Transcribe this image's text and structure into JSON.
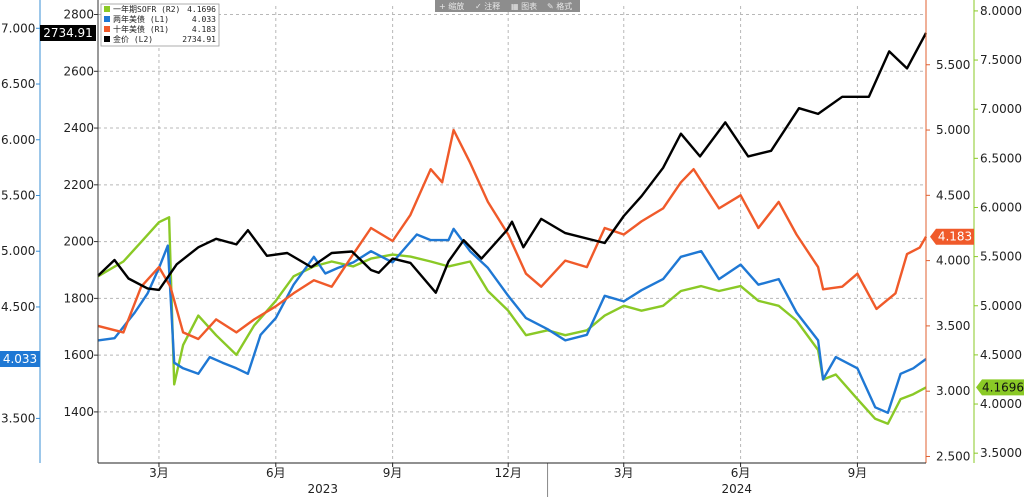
{
  "toolbar": {
    "buttons": [
      "+ 缩放",
      "✓ 注释",
      "▦ 图表",
      "✎ 格式"
    ]
  },
  "chart_data": {
    "type": "line",
    "axes": {
      "L1": {
        "min": 3.1,
        "max": 7.2,
        "ticks": [
          "3.500",
          "4.000",
          "4.500",
          "5.000",
          "5.500",
          "6.000",
          "6.500",
          "7.000"
        ],
        "tick_values": [
          3.5,
          4.0,
          4.5,
          5.0,
          5.5,
          6.0,
          6.5,
          7.0
        ],
        "color": "#3a8fd6"
      },
      "L2": {
        "min": 1220,
        "max": 2830,
        "ticks": [
          "1400",
          "1600",
          "1800",
          "2000",
          "2200",
          "2400",
          "2600",
          "2800"
        ],
        "tick_values": [
          1400,
          1600,
          1800,
          2000,
          2200,
          2400,
          2600,
          2800
        ],
        "color": "#333333"
      },
      "R1": {
        "min": 2.45,
        "max": 5.95,
        "ticks": [
          "2.500",
          "3.000",
          "3.500",
          "4.000",
          "4.500",
          "5.000",
          "5.500"
        ],
        "tick_values": [
          2.5,
          3.0,
          3.5,
          4.0,
          4.5,
          5.0,
          5.5
        ],
        "color": "#e06030"
      },
      "R2": {
        "min": 3.4,
        "max": 8.05,
        "ticks": [
          "3.5000",
          "4.0000",
          "4.5000",
          "5.0000",
          "5.5000",
          "6.0000",
          "6.5000",
          "7.0000",
          "7.5000",
          "8.0000"
        ],
        "tick_values": [
          3.5,
          4.0,
          4.5,
          5.0,
          5.5,
          6.0,
          6.5,
          7.0,
          7.5,
          8.0
        ],
        "color": "#8ac926"
      }
    },
    "x_range": [
      "2023-01-12",
      "2024-10-25"
    ],
    "x_ticks": [
      {
        "date": "2023-03-01",
        "label": "3月"
      },
      {
        "date": "2023-06-01",
        "label": "6月"
      },
      {
        "date": "2023-09-01",
        "label": "9月"
      },
      {
        "date": "2023-12-01",
        "label": "12月"
      },
      {
        "date": "2024-03-01",
        "label": "3月"
      },
      {
        "date": "2024-06-01",
        "label": "6月"
      },
      {
        "date": "2024-09-01",
        "label": "9月"
      }
    ],
    "years": [
      {
        "label": "2023",
        "start": "2023-01-12",
        "end": "2024-01-01"
      },
      {
        "label": "2024",
        "start": "2024-01-01",
        "end": "2024-10-25"
      }
    ],
    "legend": [
      {
        "name": "一年期SOFR (R2)",
        "value": "4.1696",
        "series": "sofr"
      },
      {
        "name": "两年美债 (L1)",
        "value": "4.033",
        "series": "ust2y"
      },
      {
        "name": "十年美债 (R1)",
        "value": "4.183",
        "series": "ust10y"
      },
      {
        "name": "金价 (L2)",
        "value": "2734.91",
        "series": "gold"
      }
    ],
    "series": [
      {
        "id": "sofr",
        "axis": "R2",
        "color": "#8ac926",
        "last_label": "4.1696",
        "label_side": "right",
        "points": [
          [
            "2023-01-12",
            5.3
          ],
          [
            "2023-02-01",
            5.45
          ],
          [
            "2023-02-15",
            5.65
          ],
          [
            "2023-03-01",
            5.85
          ],
          [
            "2023-03-09",
            5.9
          ],
          [
            "2023-03-13",
            4.2
          ],
          [
            "2023-03-20",
            4.6
          ],
          [
            "2023-04-01",
            4.9
          ],
          [
            "2023-04-15",
            4.7
          ],
          [
            "2023-05-01",
            4.5
          ],
          [
            "2023-05-15",
            4.8
          ],
          [
            "2023-06-01",
            5.05
          ],
          [
            "2023-06-15",
            5.3
          ],
          [
            "2023-07-01",
            5.4
          ],
          [
            "2023-07-15",
            5.45
          ],
          [
            "2023-08-01",
            5.4
          ],
          [
            "2023-08-15",
            5.48
          ],
          [
            "2023-09-01",
            5.52
          ],
          [
            "2023-09-15",
            5.5
          ],
          [
            "2023-10-01",
            5.45
          ],
          [
            "2023-10-15",
            5.4
          ],
          [
            "2023-11-01",
            5.45
          ],
          [
            "2023-11-15",
            5.15
          ],
          [
            "2023-12-01",
            4.95
          ],
          [
            "2023-12-15",
            4.7
          ],
          [
            "2024-01-01",
            4.75
          ],
          [
            "2024-01-15",
            4.7
          ],
          [
            "2024-02-01",
            4.75
          ],
          [
            "2024-02-15",
            4.9
          ],
          [
            "2024-03-01",
            5.0
          ],
          [
            "2024-03-15",
            4.95
          ],
          [
            "2024-04-01",
            5.0
          ],
          [
            "2024-04-15",
            5.15
          ],
          [
            "2024-05-01",
            5.2
          ],
          [
            "2024-05-15",
            5.15
          ],
          [
            "2024-06-01",
            5.2
          ],
          [
            "2024-06-15",
            5.05
          ],
          [
            "2024-07-01",
            5.0
          ],
          [
            "2024-07-15",
            4.85
          ],
          [
            "2024-08-01",
            4.55
          ],
          [
            "2024-08-05",
            4.25
          ],
          [
            "2024-08-15",
            4.3
          ],
          [
            "2024-09-01",
            4.05
          ],
          [
            "2024-09-15",
            3.85
          ],
          [
            "2024-09-25",
            3.8
          ],
          [
            "2024-10-05",
            4.05
          ],
          [
            "2024-10-15",
            4.1
          ],
          [
            "2024-10-25",
            4.1696
          ]
        ]
      },
      {
        "id": "ust2y",
        "axis": "L1",
        "color": "#1f78d4",
        "last_label": "4.033",
        "label_side": "left",
        "points": [
          [
            "2023-01-12",
            4.2
          ],
          [
            "2023-01-25",
            4.22
          ],
          [
            "2023-02-10",
            4.45
          ],
          [
            "2023-02-20",
            4.62
          ],
          [
            "2023-03-01",
            4.85
          ],
          [
            "2023-03-08",
            5.05
          ],
          [
            "2023-03-13",
            4.0
          ],
          [
            "2023-03-20",
            3.95
          ],
          [
            "2023-04-01",
            3.9
          ],
          [
            "2023-04-10",
            4.05
          ],
          [
            "2023-04-20",
            4.0
          ],
          [
            "2023-05-01",
            3.95
          ],
          [
            "2023-05-10",
            3.9
          ],
          [
            "2023-05-20",
            4.25
          ],
          [
            "2023-06-01",
            4.4
          ],
          [
            "2023-06-15",
            4.7
          ],
          [
            "2023-07-01",
            4.95
          ],
          [
            "2023-07-10",
            4.8
          ],
          [
            "2023-07-20",
            4.85
          ],
          [
            "2023-08-01",
            4.9
          ],
          [
            "2023-08-15",
            5.0
          ],
          [
            "2023-09-01",
            4.9
          ],
          [
            "2023-09-20",
            5.15
          ],
          [
            "2023-10-01",
            5.1
          ],
          [
            "2023-10-15",
            5.1
          ],
          [
            "2023-10-19",
            5.2
          ],
          [
            "2023-11-01",
            5.0
          ],
          [
            "2023-11-15",
            4.85
          ],
          [
            "2023-12-01",
            4.6
          ],
          [
            "2023-12-15",
            4.4
          ],
          [
            "2024-01-01",
            4.3
          ],
          [
            "2024-01-15",
            4.2
          ],
          [
            "2024-02-01",
            4.25
          ],
          [
            "2024-02-15",
            4.6
          ],
          [
            "2024-03-01",
            4.55
          ],
          [
            "2024-03-15",
            4.65
          ],
          [
            "2024-04-01",
            4.75
          ],
          [
            "2024-04-15",
            4.95
          ],
          [
            "2024-05-01",
            5.0
          ],
          [
            "2024-05-15",
            4.75
          ],
          [
            "2024-06-01",
            4.88
          ],
          [
            "2024-06-15",
            4.7
          ],
          [
            "2024-07-01",
            4.75
          ],
          [
            "2024-07-15",
            4.45
          ],
          [
            "2024-08-01",
            4.2
          ],
          [
            "2024-08-05",
            3.85
          ],
          [
            "2024-08-15",
            4.05
          ],
          [
            "2024-09-01",
            3.95
          ],
          [
            "2024-09-15",
            3.6
          ],
          [
            "2024-09-25",
            3.55
          ],
          [
            "2024-10-05",
            3.9
          ],
          [
            "2024-10-15",
            3.95
          ],
          [
            "2024-10-25",
            4.033
          ]
        ]
      },
      {
        "id": "ust10y",
        "axis": "R1",
        "color": "#f05a2a",
        "last_label": "4.183",
        "label_side": "right",
        "points": [
          [
            "2023-01-12",
            3.5
          ],
          [
            "2023-02-01",
            3.45
          ],
          [
            "2023-02-15",
            3.8
          ],
          [
            "2023-03-01",
            3.95
          ],
          [
            "2023-03-10",
            3.8
          ],
          [
            "2023-03-20",
            3.45
          ],
          [
            "2023-04-01",
            3.4
          ],
          [
            "2023-04-15",
            3.55
          ],
          [
            "2023-05-01",
            3.45
          ],
          [
            "2023-05-15",
            3.55
          ],
          [
            "2023-06-01",
            3.65
          ],
          [
            "2023-06-15",
            3.75
          ],
          [
            "2023-07-01",
            3.85
          ],
          [
            "2023-07-15",
            3.8
          ],
          [
            "2023-08-01",
            4.05
          ],
          [
            "2023-08-15",
            4.25
          ],
          [
            "2023-09-01",
            4.15
          ],
          [
            "2023-09-15",
            4.35
          ],
          [
            "2023-10-01",
            4.7
          ],
          [
            "2023-10-10",
            4.6
          ],
          [
            "2023-10-19",
            5.0
          ],
          [
            "2023-11-01",
            4.75
          ],
          [
            "2023-11-15",
            4.45
          ],
          [
            "2023-12-01",
            4.2
          ],
          [
            "2023-12-15",
            3.9
          ],
          [
            "2023-12-27",
            3.8
          ],
          [
            "2024-01-15",
            4.0
          ],
          [
            "2024-02-01",
            3.95
          ],
          [
            "2024-02-15",
            4.25
          ],
          [
            "2024-03-01",
            4.2
          ],
          [
            "2024-03-15",
            4.3
          ],
          [
            "2024-04-01",
            4.4
          ],
          [
            "2024-04-15",
            4.6
          ],
          [
            "2024-04-25",
            4.7
          ],
          [
            "2024-05-15",
            4.4
          ],
          [
            "2024-06-01",
            4.5
          ],
          [
            "2024-06-15",
            4.25
          ],
          [
            "2024-07-01",
            4.45
          ],
          [
            "2024-07-15",
            4.2
          ],
          [
            "2024-08-01",
            3.95
          ],
          [
            "2024-08-05",
            3.78
          ],
          [
            "2024-08-20",
            3.8
          ],
          [
            "2024-09-01",
            3.9
          ],
          [
            "2024-09-16",
            3.63
          ],
          [
            "2024-10-01",
            3.75
          ],
          [
            "2024-10-10",
            4.05
          ],
          [
            "2024-10-20",
            4.1
          ],
          [
            "2024-10-25",
            4.183
          ]
        ]
      },
      {
        "id": "gold",
        "axis": "L2",
        "color": "#000000",
        "last_label": "2734.91",
        "label_side": "left",
        "points": [
          [
            "2023-01-12",
            1880
          ],
          [
            "2023-01-25",
            1935
          ],
          [
            "2023-02-05",
            1870
          ],
          [
            "2023-02-20",
            1835
          ],
          [
            "2023-03-01",
            1830
          ],
          [
            "2023-03-15",
            1920
          ],
          [
            "2023-04-01",
            1980
          ],
          [
            "2023-04-15",
            2010
          ],
          [
            "2023-05-01",
            1990
          ],
          [
            "2023-05-10",
            2040
          ],
          [
            "2023-05-25",
            1950
          ],
          [
            "2023-06-10",
            1960
          ],
          [
            "2023-06-29",
            1910
          ],
          [
            "2023-07-15",
            1960
          ],
          [
            "2023-07-31",
            1965
          ],
          [
            "2023-08-15",
            1900
          ],
          [
            "2023-08-21",
            1890
          ],
          [
            "2023-09-01",
            1940
          ],
          [
            "2023-09-15",
            1925
          ],
          [
            "2023-10-05",
            1820
          ],
          [
            "2023-10-15",
            1930
          ],
          [
            "2023-10-27",
            2005
          ],
          [
            "2023-11-10",
            1940
          ],
          [
            "2023-11-30",
            2040
          ],
          [
            "2023-12-04",
            2070
          ],
          [
            "2023-12-13",
            1980
          ],
          [
            "2023-12-27",
            2080
          ],
          [
            "2024-01-15",
            2030
          ],
          [
            "2024-02-15",
            1995
          ],
          [
            "2024-03-01",
            2090
          ],
          [
            "2024-03-15",
            2160
          ],
          [
            "2024-04-01",
            2260
          ],
          [
            "2024-04-15",
            2380
          ],
          [
            "2024-04-30",
            2300
          ],
          [
            "2024-05-20",
            2420
          ],
          [
            "2024-06-07",
            2300
          ],
          [
            "2024-06-25",
            2320
          ],
          [
            "2024-07-17",
            2470
          ],
          [
            "2024-08-01",
            2450
          ],
          [
            "2024-08-20",
            2510
          ],
          [
            "2024-09-10",
            2510
          ],
          [
            "2024-09-26",
            2670
          ],
          [
            "2024-10-10",
            2610
          ],
          [
            "2024-10-25",
            2734.91
          ]
        ]
      }
    ]
  }
}
